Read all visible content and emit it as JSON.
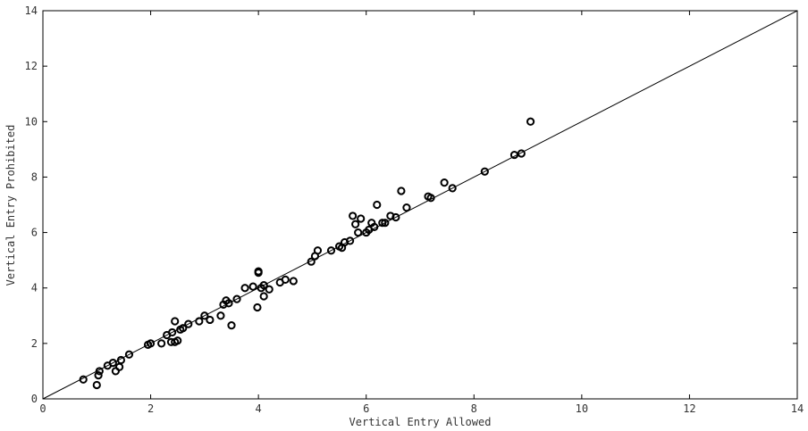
{
  "chart_data": {
    "type": "scatter",
    "title": "",
    "xlabel": "Vertical Entry Allowed",
    "ylabel": "Vertical Entry Prohibited",
    "xlim": [
      0,
      14
    ],
    "ylim": [
      0,
      14
    ],
    "xticks": [
      "0",
      "2",
      "4",
      "6",
      "8",
      "10",
      "12",
      "14"
    ],
    "yticks": [
      "0",
      "2",
      "4",
      "6",
      "8",
      "10",
      "12",
      "14"
    ],
    "grid": false,
    "reference_line": {
      "from": [
        0,
        0
      ],
      "to": [
        14,
        14
      ]
    },
    "marker_color": "#000000",
    "x": [
      0.75,
      1.0,
      1.03,
      1.05,
      1.2,
      1.3,
      1.35,
      1.42,
      1.45,
      1.6,
      1.95,
      2.0,
      2.2,
      2.3,
      2.38,
      2.4,
      2.45,
      2.45,
      2.5,
      2.55,
      2.6,
      2.7,
      2.9,
      3.0,
      3.1,
      3.3,
      3.35,
      3.4,
      3.45,
      3.5,
      3.6,
      3.75,
      3.9,
      3.98,
      4.0,
      4.0,
      4.05,
      4.1,
      4.1,
      4.2,
      4.4,
      4.5,
      4.65,
      4.98,
      5.05,
      5.1,
      5.35,
      5.5,
      5.55,
      5.6,
      5.7,
      5.75,
      5.8,
      5.85,
      5.9,
      6.0,
      6.05,
      6.1,
      6.15,
      6.2,
      6.3,
      6.35,
      6.45,
      6.55,
      6.65,
      6.75,
      7.15,
      7.2,
      7.45,
      7.6,
      8.2,
      8.75,
      8.88,
      9.05
    ],
    "y": [
      0.7,
      0.5,
      0.85,
      1.0,
      1.2,
      1.3,
      1.0,
      1.15,
      1.4,
      1.6,
      1.95,
      2.0,
      2.0,
      2.3,
      2.05,
      2.4,
      2.05,
      2.8,
      2.1,
      2.5,
      2.55,
      2.7,
      2.8,
      3.0,
      2.85,
      3.0,
      3.4,
      3.55,
      3.45,
      2.65,
      3.6,
      4.0,
      4.05,
      3.3,
      4.6,
      4.55,
      4.0,
      3.7,
      4.1,
      3.95,
      4.2,
      4.3,
      4.25,
      4.95,
      5.15,
      5.35,
      5.35,
      5.5,
      5.45,
      5.65,
      5.7,
      6.6,
      6.3,
      6.0,
      6.5,
      6.0,
      6.1,
      6.35,
      6.2,
      7.0,
      6.35,
      6.35,
      6.6,
      6.55,
      7.5,
      6.9,
      7.3,
      7.25,
      7.8,
      7.6,
      8.2,
      8.8,
      8.85,
      10.0
    ]
  }
}
